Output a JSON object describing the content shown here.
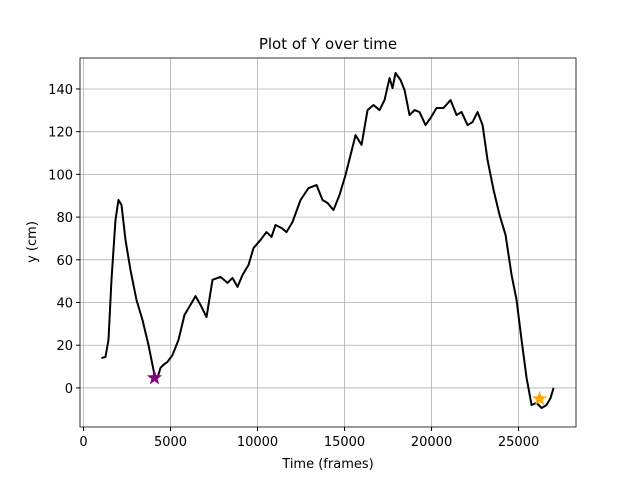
{
  "chart_data": {
    "type": "line",
    "title": "Plot of Y over time",
    "x_label": "Time (frames)",
    "y_label": "y (cm)",
    "xlim": [
      -200,
      28300
    ],
    "ylim": [
      -18.3,
      154.5
    ],
    "xticks": [
      0,
      5000,
      10000,
      15000,
      20000,
      25000
    ],
    "yticks": [
      0,
      20,
      40,
      60,
      80,
      100,
      120,
      140
    ],
    "grid": true,
    "series": [
      {
        "color": "#000000",
        "marker": "none",
        "x": [
          1034,
          1264,
          1437,
          1609,
          1839,
          2011,
          2184,
          2414,
          2701,
          3046,
          3391,
          3736,
          4080,
          4253,
          4425,
          4598,
          4828,
          5115,
          5460,
          5805,
          6149,
          6437,
          6724,
          7069,
          7414,
          7874,
          8276,
          8563,
          8851,
          9138,
          9483,
          9770,
          10172,
          10517,
          10805,
          11034,
          11379,
          11667,
          12011,
          12471,
          12931,
          13391,
          13736,
          14023,
          14368,
          14713,
          15057,
          15345,
          15632,
          15977,
          16322,
          16667,
          17011,
          17299,
          17586,
          17759,
          17931,
          18218,
          18448,
          18736,
          19023,
          19310,
          19655,
          19943,
          20287,
          20690,
          21092,
          21437,
          21724,
          22069,
          22356,
          22644,
          22931,
          23218,
          23563,
          23908,
          24253,
          24598,
          24885,
          25172,
          25460,
          25747,
          26034,
          26322,
          26609,
          26839,
          27011
        ],
        "values": [
          14,
          14.5,
          22.5,
          50.6,
          78.7,
          88,
          85.7,
          69.3,
          55.2,
          41.2,
          31.8,
          20.1,
          6.1,
          4.7,
          9.4,
          10.8,
          12.2,
          15.4,
          22.5,
          34.2,
          38.9,
          43,
          38.9,
          33.2,
          50.6,
          52,
          49.2,
          51.5,
          47.3,
          52.9,
          57.6,
          65.5,
          69.3,
          73,
          70.7,
          76.3,
          74.9,
          73,
          77.7,
          88,
          93.6,
          95,
          88,
          86.6,
          83.3,
          90.4,
          99.7,
          109,
          118.4,
          113.8,
          130.1,
          132.5,
          130.1,
          134.8,
          145.1,
          140.4,
          147.5,
          144.2,
          139.5,
          127.8,
          130.1,
          129.2,
          123.1,
          126.4,
          131.1,
          131.1,
          134.8,
          127.8,
          129.2,
          123.1,
          124.5,
          129.2,
          123.1,
          106.7,
          92.7,
          81,
          71.6,
          52.9,
          41.2,
          22.5,
          4.7,
          -8,
          -7,
          -9.4,
          -8,
          -4.7,
          0
        ]
      },
      {
        "color": "#800080",
        "marker": "star",
        "x": [
          4080
        ],
        "values": [
          4.7
        ]
      },
      {
        "color": "#ffa500",
        "marker": "star",
        "x": [
          26207
        ],
        "values": [
          -5.1
        ]
      }
    ]
  }
}
